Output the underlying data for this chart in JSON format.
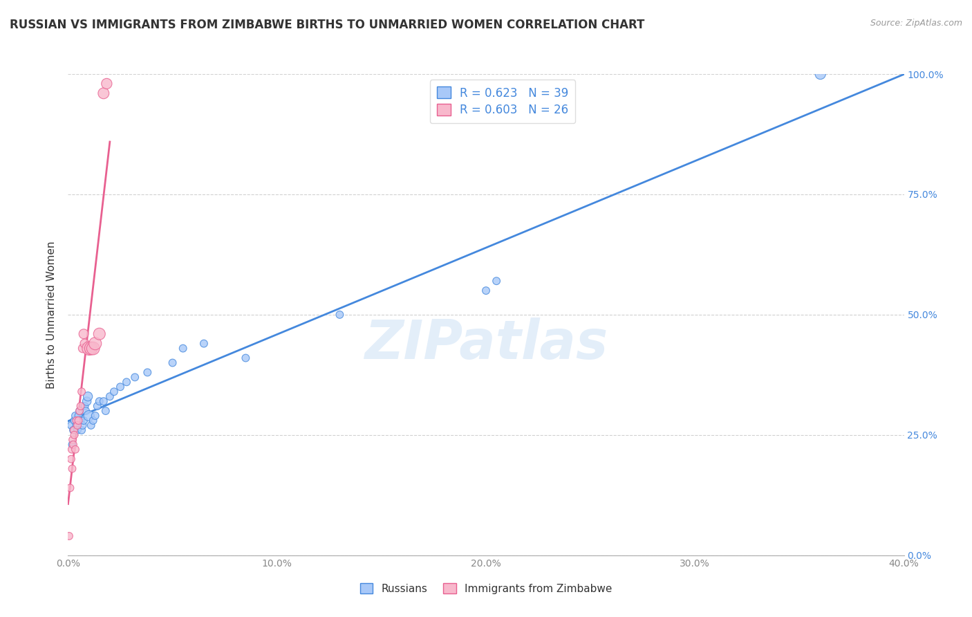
{
  "title": "RUSSIAN VS IMMIGRANTS FROM ZIMBABWE BIRTHS TO UNMARRIED WOMEN CORRELATION CHART",
  "source": "Source: ZipAtlas.com",
  "ylabel": "Births to Unmarried Women",
  "xlim": [
    0.0,
    40.0
  ],
  "ylim": [
    0.0,
    100.0
  ],
  "xticks": [
    0.0,
    10.0,
    20.0,
    30.0,
    40.0
  ],
  "yticks": [
    0.0,
    25.0,
    50.0,
    75.0,
    100.0
  ],
  "blue_color": "#a8c8f8",
  "pink_color": "#f8b8cc",
  "blue_line_color": "#4488dd",
  "pink_line_color": "#e86090",
  "legend_blue_R": "0.623",
  "legend_blue_N": "39",
  "legend_pink_R": "0.603",
  "legend_pink_N": "26",
  "watermark": "ZIPatlas",
  "russians_x": [
    0.15,
    0.2,
    0.25,
    0.3,
    0.35,
    0.4,
    0.45,
    0.5,
    0.55,
    0.6,
    0.65,
    0.7,
    0.75,
    0.8,
    0.85,
    0.9,
    0.95,
    1.0,
    1.1,
    1.2,
    1.3,
    1.4,
    1.5,
    1.7,
    1.8,
    2.0,
    2.2,
    2.5,
    2.8,
    3.2,
    3.8,
    5.0,
    5.5,
    6.5,
    8.5,
    13.0,
    20.0,
    20.5,
    36.0
  ],
  "russians_y": [
    27.0,
    23.0,
    26.0,
    28.0,
    29.0,
    27.0,
    26.0,
    29.0,
    30.0,
    28.0,
    26.0,
    27.0,
    28.0,
    31.0,
    30.0,
    32.0,
    33.0,
    29.0,
    27.0,
    28.0,
    29.0,
    31.0,
    32.0,
    32.0,
    30.0,
    33.0,
    34.0,
    35.0,
    36.0,
    37.0,
    38.0,
    40.0,
    43.0,
    44.0,
    41.0,
    50.0,
    55.0,
    57.0,
    100.0
  ],
  "russians_sizes": [
    60,
    60,
    60,
    60,
    60,
    60,
    60,
    60,
    60,
    60,
    60,
    60,
    60,
    60,
    60,
    80,
    90,
    120,
    60,
    60,
    60,
    60,
    60,
    60,
    60,
    60,
    60,
    60,
    60,
    60,
    60,
    60,
    60,
    60,
    60,
    60,
    60,
    60,
    120
  ],
  "zimbabwe_x": [
    0.05,
    0.1,
    0.15,
    0.18,
    0.2,
    0.22,
    0.25,
    0.28,
    0.3,
    0.35,
    0.4,
    0.45,
    0.5,
    0.55,
    0.6,
    0.65,
    0.7,
    0.75,
    0.8,
    1.0,
    1.1,
    1.2,
    1.3,
    1.5,
    1.7,
    1.85
  ],
  "zimbabwe_y": [
    4.0,
    14.0,
    20.0,
    22.0,
    18.0,
    24.0,
    23.0,
    26.0,
    25.0,
    22.0,
    28.0,
    27.0,
    28.0,
    30.0,
    31.0,
    34.0,
    43.0,
    46.0,
    44.0,
    43.0,
    43.0,
    43.0,
    44.0,
    46.0,
    96.0,
    98.0
  ],
  "zimbabwe_sizes": [
    60,
    60,
    60,
    60,
    60,
    60,
    60,
    60,
    60,
    60,
    60,
    60,
    60,
    60,
    60,
    60,
    80,
    100,
    90,
    200,
    180,
    180,
    170,
    150,
    130,
    120
  ]
}
